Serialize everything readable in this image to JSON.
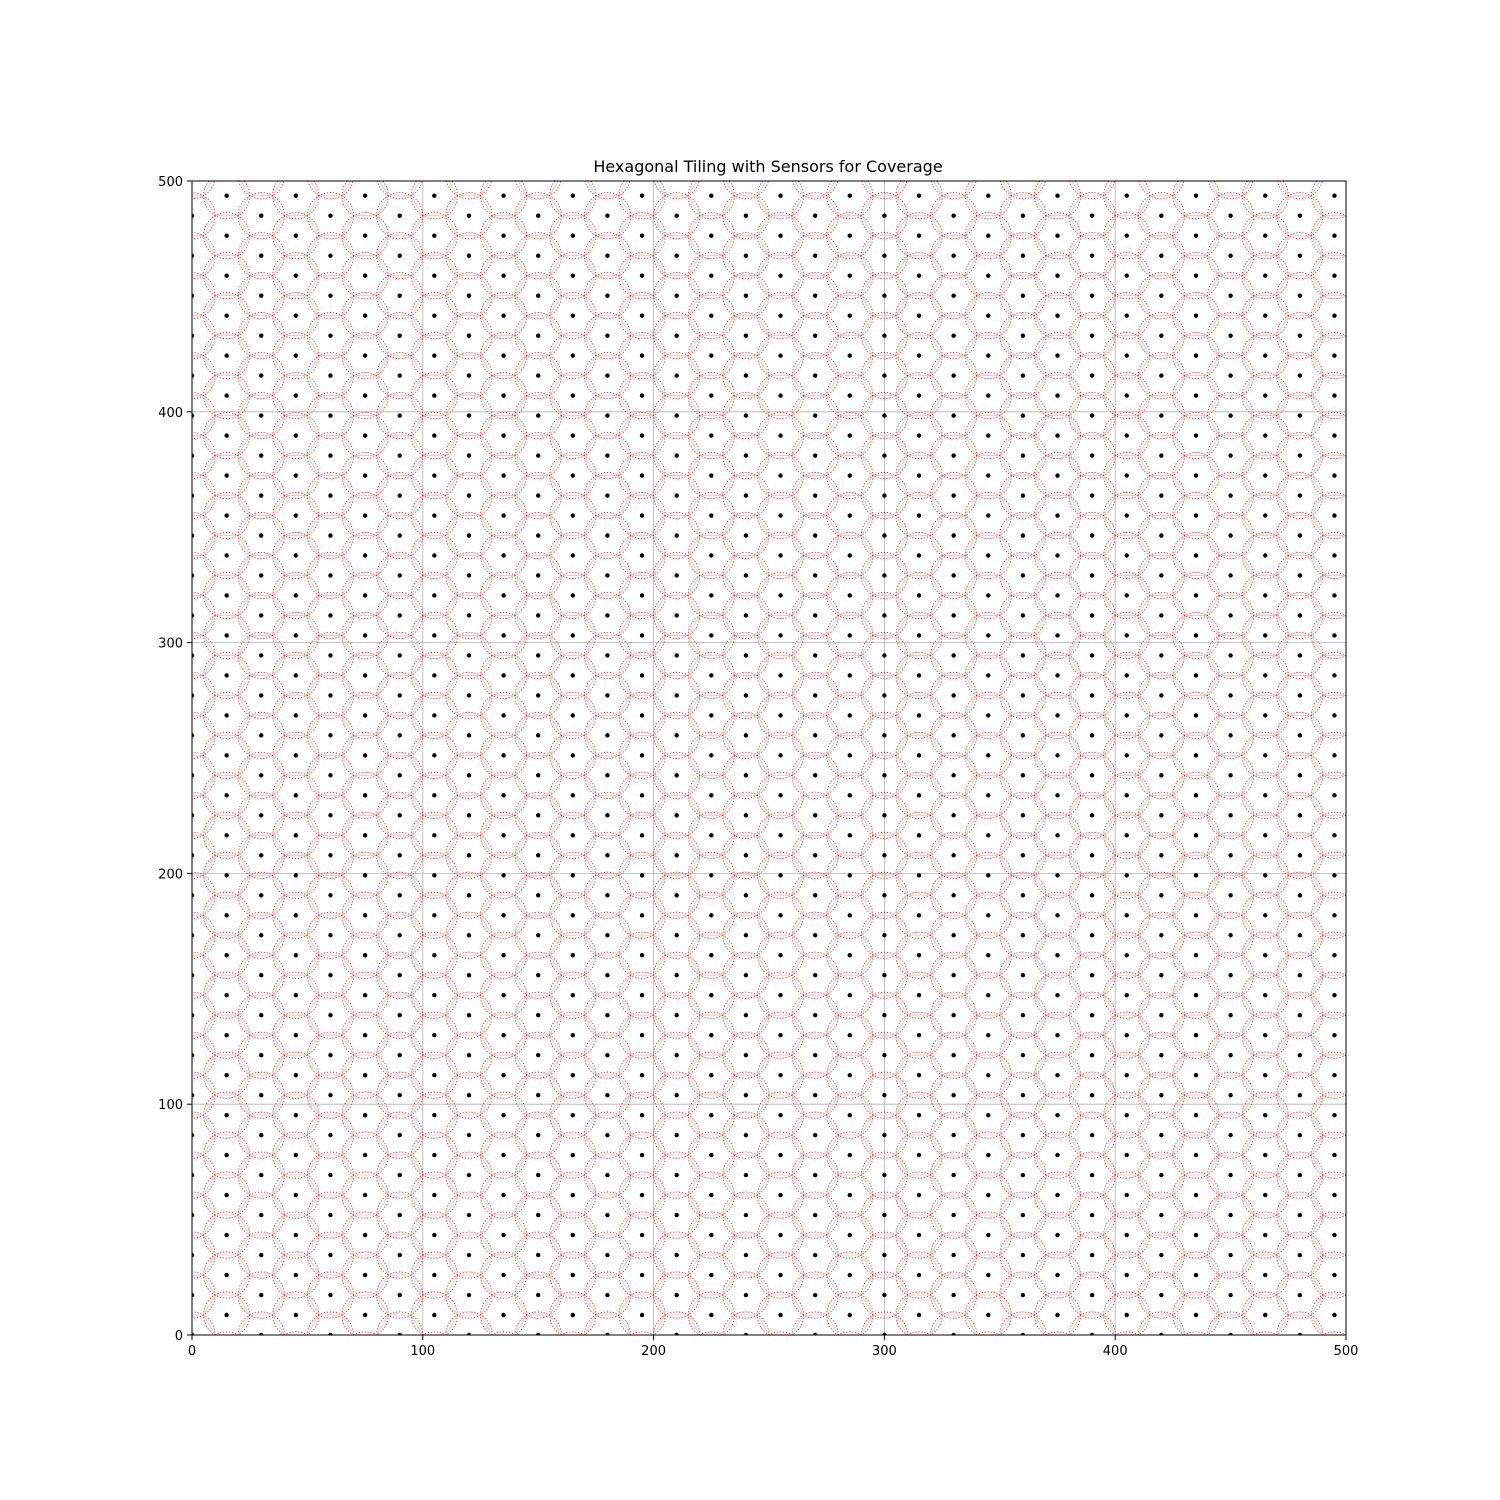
{
  "chart_data": {
    "type": "scatter",
    "title": "Hexagonal Tiling with Sensors for Coverage",
    "xlabel": "",
    "ylabel": "",
    "xlim": [
      0,
      500
    ],
    "ylim": [
      0,
      500
    ],
    "x_ticks": [
      0,
      100,
      200,
      300,
      400,
      500
    ],
    "y_ticks": [
      0,
      100,
      200,
      300,
      400,
      500
    ],
    "grid": true,
    "legend": "none",
    "hexagon_tiling": {
      "hex_side": 10,
      "column_spacing": 15,
      "row_spacing": 17.32,
      "odd_column_offset": 8.66,
      "edge_color": "#d3d3d3"
    },
    "sensors": {
      "marker_color": "#000000",
      "coverage_radius": 10,
      "coverage_color": "#ff0000",
      "coverage_style": "dotted"
    }
  }
}
